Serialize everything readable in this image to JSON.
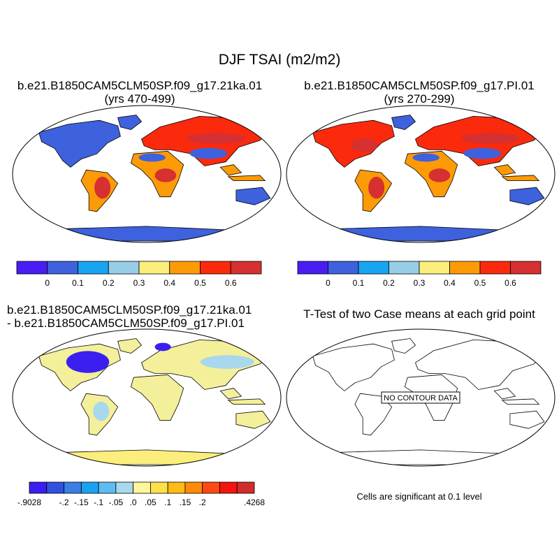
{
  "title": "DJF TSAI (m2/m2)",
  "panels": [
    {
      "title_line1": "b.e21.B1850CAM5CLM50SP.f09_g17.21ka.01",
      "title_line2": "(yrs 470-499)"
    },
    {
      "title_line1": "b.e21.B1850CAM5CLM50SP.f09_g17.PI.01",
      "title_line2": "(yrs 270-299)"
    },
    {
      "title_line1": "b.e21.B1850CAM5CLM50SP.f09_g17.21ka.01",
      "title_line2": "- b.e21.B1850CAM5CLM50SP.f09_g17.PI.01"
    },
    {
      "title_line1": "T-Test of two Case means at each grid point",
      "title_line2": ""
    }
  ],
  "no_data_label": "NO CONTOUR DATA",
  "significance_note": "Cells are significant at 0.1 level",
  "colorbar_abs": {
    "colors": [
      "#4a1ef2",
      "#3e61dd",
      "#17a4f0",
      "#98cde8",
      "#fbee7c",
      "#fd9b07",
      "#fb2a0d",
      "#d63030"
    ],
    "labels": [
      "0",
      "0.1",
      "0.2",
      "0.3",
      "0.4",
      "0.5",
      "0.6"
    ]
  },
  "colorbar_diff": {
    "colors": [
      "#3a1ff0",
      "#3050e0",
      "#3a7ee6",
      "#1aa2f2",
      "#5fbcf0",
      "#a8d8ec",
      "#fff59a",
      "#fde04a",
      "#fdbb14",
      "#fd8a08",
      "#fc4a12",
      "#f5140e",
      "#d02c2c"
    ],
    "labels": [
      "-.9028",
      "-.2",
      "-.15",
      "-.1",
      "-.05",
      ".0",
      ".05",
      ".1",
      ".15",
      ".2",
      ".4268"
    ]
  },
  "map_colors": {
    "ocean": "#ffffff",
    "ice_abs": "#3e61dd",
    "ice_diff": "#fbee7c",
    "forest": "#d63030",
    "boreal": "#fb2a0d",
    "mid": "#fd9b07",
    "dry": "#3e61dd",
    "diff_land": "#f4ef9a",
    "diff_cold": "#3a1ff0",
    "diff_cool": "#a8d8ec"
  }
}
